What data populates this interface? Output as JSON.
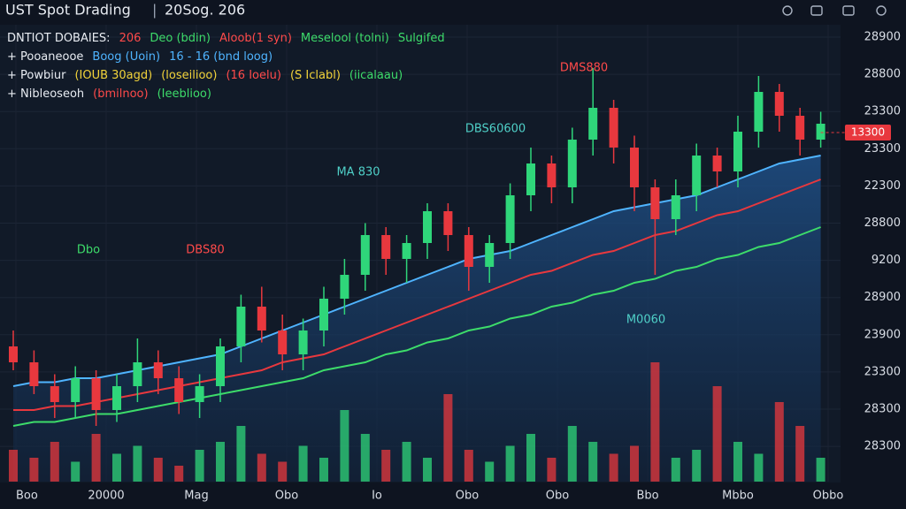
{
  "header": {
    "title": "UST Spot Drading",
    "date": "20Sog. 206"
  },
  "legend": [
    [
      {
        "text": "DNTIOT DOBAIES:",
        "color": "#e8ecf2"
      },
      {
        "text": "206",
        "color": "#ff4a4a"
      },
      {
        "text": "Deo (bdin)",
        "color": "#3ddc6a"
      },
      {
        "text": "Aloob(1 syn)",
        "color": "#ff4a4a"
      },
      {
        "text": "Meselool (tolni)",
        "color": "#3ddc6a"
      },
      {
        "text": "Sulgifed",
        "color": "#3ddc6a"
      }
    ],
    [
      {
        "text": "+ Pooaneooe",
        "color": "#e8ecf2"
      },
      {
        "text": "Boog (Uoin)",
        "color": "#4fb4ff"
      },
      {
        "text": "16 - 16 (bnd loog)",
        "color": "#4fb4ff"
      }
    ],
    [
      {
        "text": "+ Powbiur",
        "color": "#e8ecf2"
      },
      {
        "text": "(IOUB 30agd)",
        "color": "#f2d33a"
      },
      {
        "text": "(loseilioo)",
        "color": "#f2d33a"
      },
      {
        "text": "(16 Ioelu)",
        "color": "#ff4a4a"
      },
      {
        "text": "(S Iclabl)",
        "color": "#f2d33a"
      },
      {
        "text": "(iicalaau)",
        "color": "#3ddc6a"
      }
    ],
    [
      {
        "text": "+ Nibleoseoh",
        "color": "#e8ecf2"
      },
      {
        "text": "(bmilnoo)",
        "color": "#ff4a4a"
      },
      {
        "text": "(Ieeblioo)",
        "color": "#3ddc6a"
      }
    ]
  ],
  "chart_data": {
    "type": "candlestick",
    "up_color": "#2fd67a",
    "down_color": "#e8383e",
    "ylim": [
      0,
      110
    ],
    "volume_lim": [
      0,
      30
    ],
    "open": [
      34,
      30,
      24,
      20,
      26,
      18,
      24,
      30,
      26,
      20,
      24,
      34,
      44,
      38,
      32,
      38,
      46,
      52,
      62,
      56,
      60,
      68,
      62,
      54,
      60,
      72,
      80,
      74,
      86,
      94,
      84,
      74,
      66,
      72,
      82,
      78,
      88,
      98,
      92,
      86
    ],
    "high": [
      38,
      33,
      27,
      29,
      28,
      27,
      36,
      33,
      29,
      27,
      36,
      47,
      49,
      42,
      41,
      49,
      56,
      65,
      64,
      62,
      70,
      70,
      64,
      62,
      75,
      84,
      82,
      89,
      104,
      96,
      87,
      76,
      76,
      85,
      84,
      92,
      102,
      100,
      94,
      93
    ],
    "low": [
      28,
      22,
      16,
      16,
      14,
      15,
      20,
      22,
      17,
      16,
      20,
      30,
      35,
      28,
      28,
      34,
      42,
      48,
      52,
      50,
      56,
      58,
      48,
      50,
      56,
      68,
      70,
      70,
      82,
      80,
      68,
      52,
      62,
      68,
      74,
      74,
      84,
      88,
      82,
      84
    ],
    "close": [
      30,
      24,
      20,
      26,
      18,
      24,
      30,
      26,
      20,
      24,
      34,
      44,
      38,
      32,
      38,
      46,
      52,
      62,
      56,
      60,
      68,
      62,
      54,
      60,
      72,
      80,
      74,
      86,
      94,
      84,
      74,
      66,
      72,
      82,
      78,
      88,
      98,
      92,
      86,
      90
    ],
    "volume": [
      8,
      6,
      10,
      5,
      12,
      7,
      9,
      6,
      4,
      8,
      10,
      14,
      7,
      5,
      9,
      6,
      18,
      12,
      8,
      10,
      6,
      22,
      8,
      5,
      9,
      12,
      6,
      14,
      10,
      7,
      9,
      30,
      6,
      8,
      24,
      10,
      7,
      20,
      14,
      6
    ],
    "series": [
      {
        "color": "#4fb4ff",
        "values": [
          24,
          25,
          25,
          26,
          26,
          27,
          28,
          29,
          30,
          31,
          32,
          34,
          36,
          38,
          40,
          42,
          44,
          46,
          48,
          50,
          52,
          54,
          56,
          57,
          58,
          60,
          62,
          64,
          66,
          68,
          69,
          70,
          71,
          72,
          74,
          76,
          78,
          80,
          81,
          82
        ]
      },
      {
        "color": "#e8383e",
        "values": [
          18,
          18,
          19,
          19,
          20,
          21,
          22,
          23,
          24,
          25,
          26,
          27,
          28,
          30,
          31,
          32,
          34,
          36,
          38,
          40,
          42,
          44,
          46,
          48,
          50,
          52,
          53,
          55,
          57,
          58,
          60,
          62,
          63,
          65,
          67,
          68,
          70,
          72,
          74,
          76
        ]
      },
      {
        "color": "#3ddc6a",
        "values": [
          14,
          15,
          15,
          16,
          17,
          17,
          18,
          19,
          20,
          21,
          22,
          23,
          24,
          25,
          26,
          28,
          29,
          30,
          32,
          33,
          35,
          36,
          38,
          39,
          41,
          42,
          44,
          45,
          47,
          48,
          50,
          51,
          53,
          54,
          56,
          57,
          59,
          60,
          62,
          64
        ]
      }
    ],
    "axis_labels": [
      "28900",
      "28800",
      "23300",
      "23300",
      "22300",
      "28800",
      "9200",
      "28900",
      "23900",
      "23300",
      "28300",
      "28300"
    ],
    "last_price": "13300",
    "x_labels": [
      "Boo",
      "20000",
      "Mag",
      "Obo",
      "Io",
      "Obo",
      "Obo",
      "Bbo",
      "Mbbo",
      "Obbo"
    ],
    "annotations": [
      {
        "text": "Dbo",
        "color": "#3ddc6a"
      },
      {
        "text": "DBS80",
        "color": "#ff4a4a"
      },
      {
        "text": "MA 830",
        "color": "#4fd0c8"
      },
      {
        "text": "DBS60600",
        "color": "#4fd0c8"
      },
      {
        "text": "DMS880",
        "color": "#ff4a4a"
      },
      {
        "text": "M0060",
        "color": "#4fd0c8"
      }
    ]
  }
}
